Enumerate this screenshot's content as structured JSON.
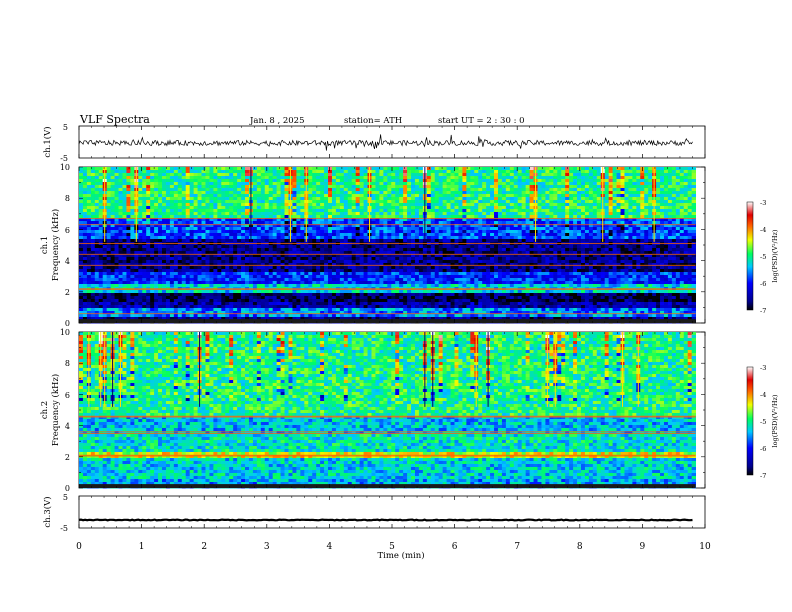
{
  "header": {
    "title": "VLF  Spectra",
    "date": "Jan.  8   , 2025",
    "station": "station= ATH",
    "start": "start  UT  =    2  : 30 : 0"
  },
  "chart_data": [
    {
      "id": "ch1_waveform",
      "type": "line",
      "ylabel": "ch.1(V)",
      "ylim": [
        -5,
        5
      ],
      "yticks": [
        "5",
        "-5"
      ],
      "xlim": [
        0,
        10
      ],
      "baseline_V": -0.3,
      "color": "#000000"
    },
    {
      "id": "ch1_spectrogram",
      "type": "heatmap",
      "ylabel_top": "ch.1",
      "ylabel": "Frequency  (kHz)",
      "ylim": [
        0,
        10
      ],
      "yticks": [
        "0",
        "2",
        "4",
        "6",
        "8",
        "10"
      ],
      "xlim": [
        0,
        9.85
      ],
      "colorbar": {
        "label": "log(PSD)(V²/Hz)",
        "ticks": [
          "-3",
          "-4",
          "-5",
          "-6",
          "-7"
        ],
        "range": [
          -7,
          -3
        ]
      },
      "bands": [
        {
          "f0": 0.0,
          "f1": 0.35,
          "level": -6.6
        },
        {
          "f0": 0.35,
          "f1": 0.9,
          "level": -5.6
        },
        {
          "f0": 0.9,
          "f1": 1.4,
          "level": -6.5
        },
        {
          "f0": 1.4,
          "f1": 2.0,
          "level": -6.8
        },
        {
          "f0": 2.0,
          "f1": 2.5,
          "level": -5.3
        },
        {
          "f0": 2.5,
          "f1": 3.3,
          "level": -5.9
        },
        {
          "f0": 3.3,
          "f1": 5.4,
          "level": -6.6
        },
        {
          "f0": 5.4,
          "f1": 6.8,
          "level": -5.8
        },
        {
          "f0": 6.8,
          "f1": 10.0,
          "level": -5.0
        }
      ],
      "lines_kHz": [
        0.6,
        2.15,
        2.2,
        3.7,
        4.4,
        5.1,
        6.3,
        6.7
      ]
    },
    {
      "id": "ch2_spectrogram",
      "type": "heatmap",
      "ylabel_top": "ch.2",
      "ylabel": "Frequency  (kHz)",
      "ylim": [
        0,
        10
      ],
      "yticks": [
        "0",
        "2",
        "4",
        "6",
        "8",
        "10"
      ],
      "xlim": [
        0,
        9.85
      ],
      "colorbar": {
        "label": "log(PSD)(V²/Hz)",
        "ticks": [
          "-3",
          "-4",
          "-5",
          "-6",
          "-7"
        ],
        "range": [
          -7,
          -3
        ]
      },
      "bands": [
        {
          "f0": 0.0,
          "f1": 0.5,
          "level": -5.5
        },
        {
          "f0": 0.5,
          "f1": 1.9,
          "level": -5.3
        },
        {
          "f0": 1.9,
          "f1": 2.3,
          "level": -4.4
        },
        {
          "f0": 2.3,
          "f1": 3.4,
          "level": -5.2
        },
        {
          "f0": 3.4,
          "f1": 4.6,
          "level": -5.4
        },
        {
          "f0": 4.6,
          "f1": 10.0,
          "level": -5.0
        }
      ],
      "lines_kHz": [
        2.05,
        2.1,
        3.5,
        3.6,
        4.55,
        4.6
      ]
    },
    {
      "id": "ch3_waveform",
      "type": "line",
      "ylabel": "ch.3(V)",
      "ylim": [
        -5,
        5
      ],
      "yticks": [
        "5",
        "-5"
      ],
      "xlim": [
        0,
        10
      ],
      "baseline_V": -2.5,
      "color": "#000000"
    }
  ],
  "x_axis": {
    "label": "Time  (min)",
    "ticks": [
      "0",
      "1",
      "2",
      "3",
      "4",
      "5",
      "6",
      "7",
      "8",
      "9",
      "10"
    ],
    "range": [
      0,
      10
    ]
  }
}
